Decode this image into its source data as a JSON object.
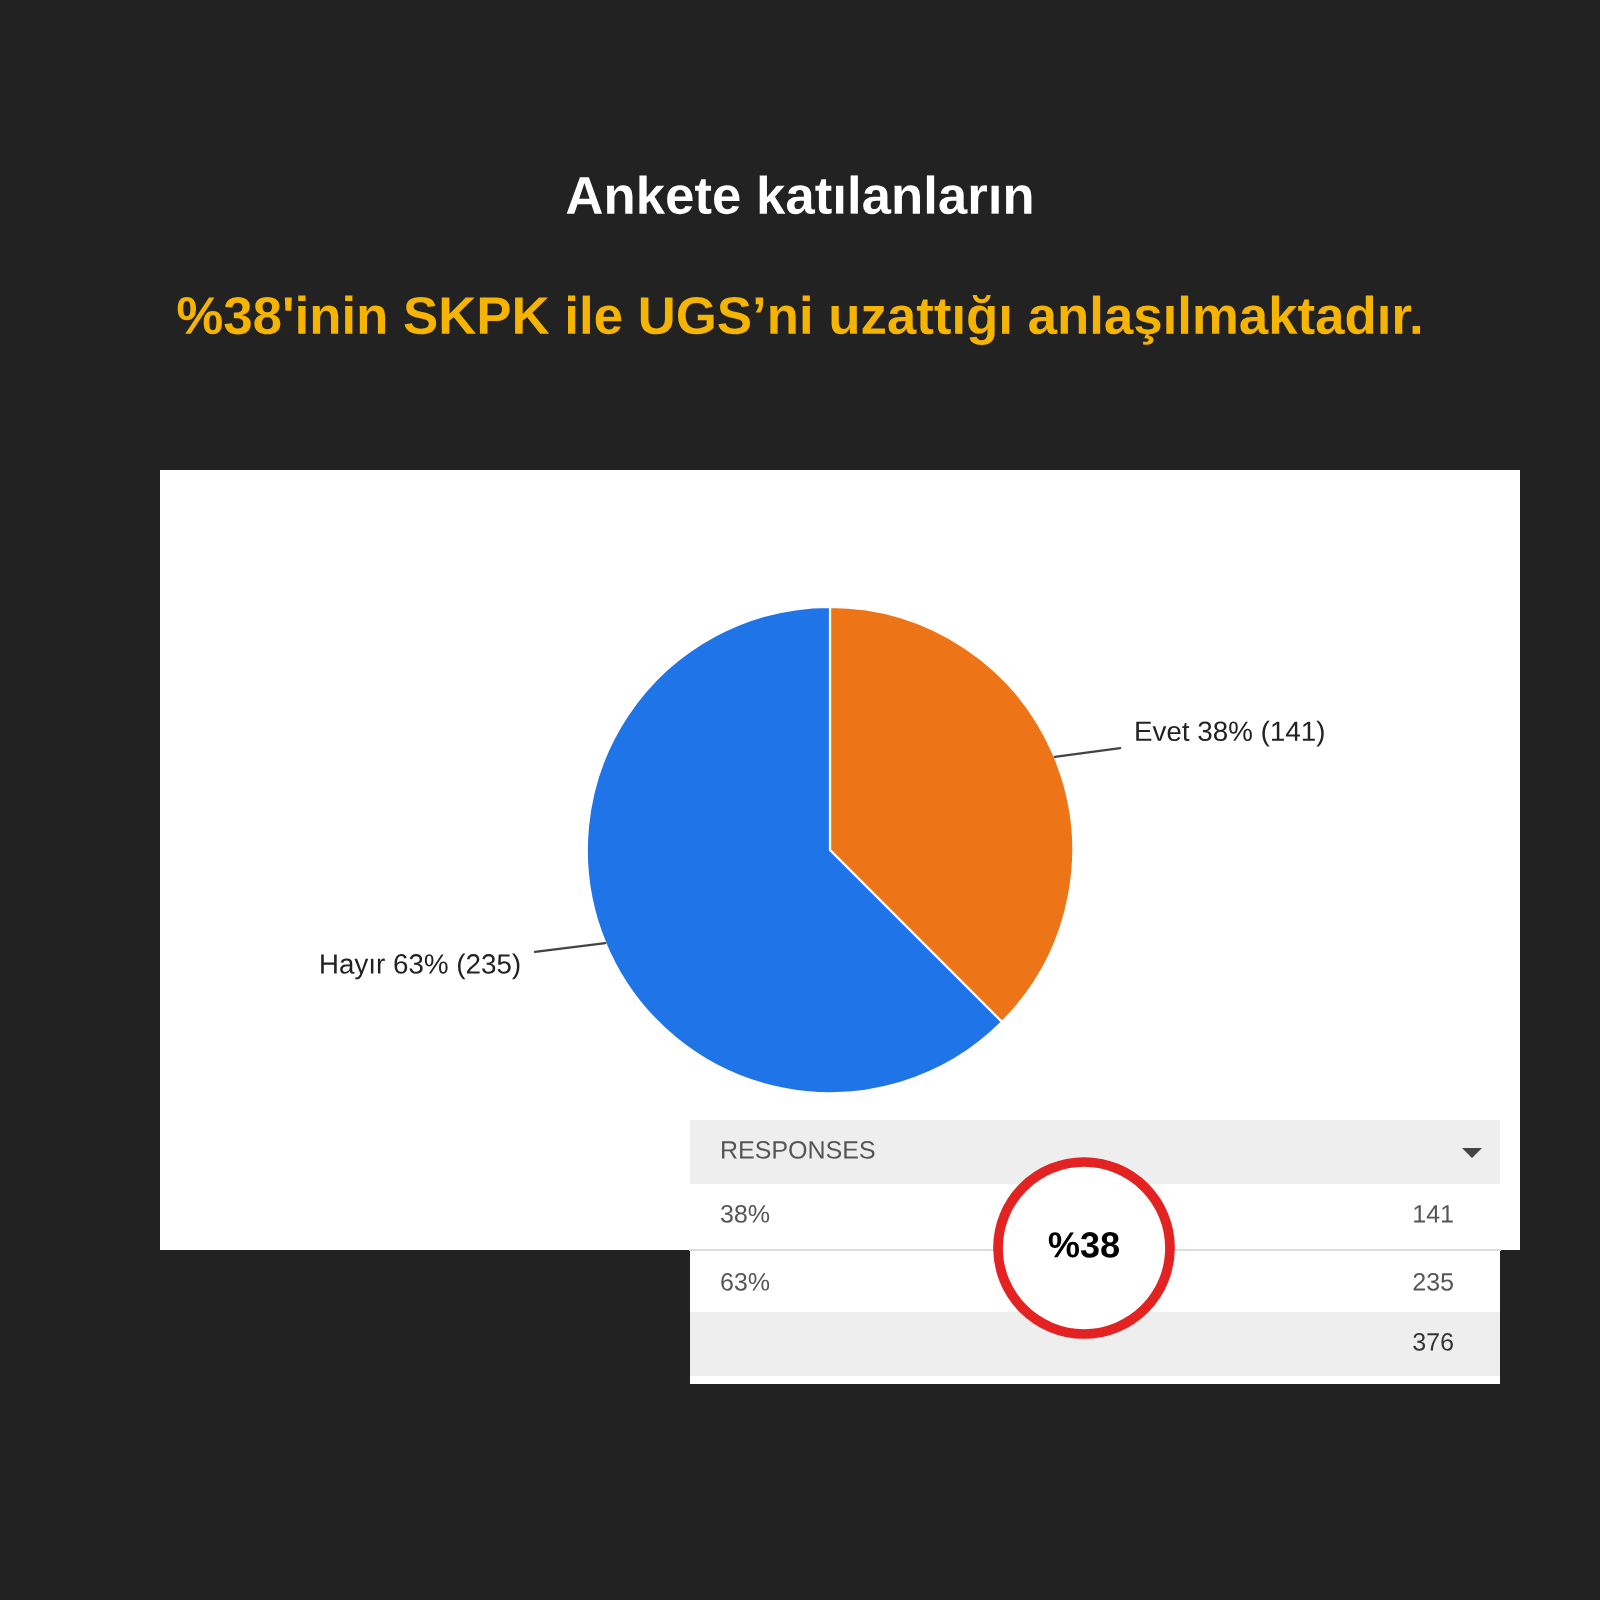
{
  "chart_data": {
    "type": "pie",
    "title": "Ankete katılanların",
    "subtitle": "%38'inin SKPK ile UGS’ni uzattığı anlaşılmaktadır.",
    "categories": [
      "Evet",
      "Hayır"
    ],
    "values": [
      141,
      235
    ],
    "colors": [
      "#ed7417",
      "#1f74e8"
    ],
    "value_labels": [
      "38% (141)",
      "63% (235)"
    ],
    "annotations": [
      "RESPONSES",
      "38%",
      "141",
      "63%",
      "235",
      "376",
      "%38"
    ]
  }
}
